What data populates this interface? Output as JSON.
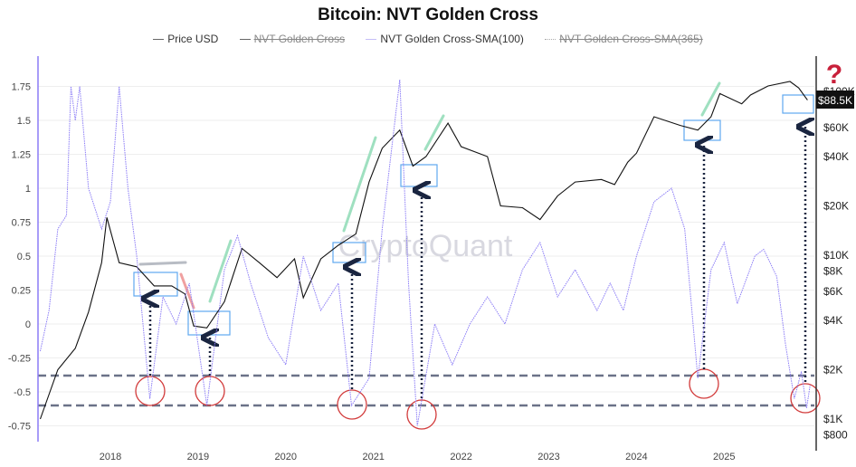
{
  "chart_data": {
    "type": "line",
    "title": "Bitcoin: NVT Golden Cross",
    "legend": [
      {
        "name": "Price USD",
        "hidden": false,
        "color": "#111111"
      },
      {
        "name": "NVT Golden Cross",
        "hidden": true,
        "color": "#333333"
      },
      {
        "name": "NVT Golden Cross-SMA(100)",
        "hidden": false,
        "color": "#8b7cf6"
      },
      {
        "name": "NVT Golden Cross-SMA(365)",
        "hidden": true,
        "color": "#aaaaaa"
      }
    ],
    "legend_placement": "top",
    "x_ticks": [
      "2018",
      "2019",
      "2020",
      "2021",
      "2022",
      "2023",
      "2024",
      "2025"
    ],
    "y_left_ticks": [
      "1.75",
      "1.5",
      "1.25",
      "1",
      "0.75",
      "0.5",
      "0.25",
      "0",
      "-0.25",
      "-0.5",
      "-0.75"
    ],
    "y_left_range": [
      -0.8,
      1.9
    ],
    "y_right_ticks": [
      "$800",
      "$1K",
      "$2K",
      "$4K",
      "$6K",
      "$8K",
      "$10K",
      "$20K",
      "$40K",
      "$60K",
      "$100K"
    ],
    "y_right_scale": "log",
    "grid": "horizontal",
    "last_price_label": "$88.5K",
    "thresholds": [
      -0.38,
      -0.6
    ],
    "watermark": "CryptoQuant",
    "series": [
      {
        "name": "Price USD",
        "axis": "right",
        "points": [
          [
            2017.2,
            1000
          ],
          [
            2017.4,
            2000
          ],
          [
            2017.6,
            2700
          ],
          [
            2017.75,
            4500
          ],
          [
            2017.9,
            9000
          ],
          [
            2017.96,
            17000
          ],
          [
            2018.1,
            9000
          ],
          [
            2018.3,
            8500
          ],
          [
            2018.5,
            6500
          ],
          [
            2018.7,
            6500
          ],
          [
            2018.85,
            5800
          ],
          [
            2018.95,
            3700
          ],
          [
            2019.1,
            3600
          ],
          [
            2019.3,
            5200
          ],
          [
            2019.5,
            11000
          ],
          [
            2019.7,
            9000
          ],
          [
            2019.9,
            7300
          ],
          [
            2020.1,
            9500
          ],
          [
            2020.2,
            5500
          ],
          [
            2020.4,
            9500
          ],
          [
            2020.6,
            11500
          ],
          [
            2020.8,
            13500
          ],
          [
            2020.95,
            28000
          ],
          [
            2021.1,
            45000
          ],
          [
            2021.3,
            58000
          ],
          [
            2021.45,
            35000
          ],
          [
            2021.6,
            40000
          ],
          [
            2021.85,
            64000
          ],
          [
            2022.0,
            46000
          ],
          [
            2022.3,
            40000
          ],
          [
            2022.45,
            20000
          ],
          [
            2022.7,
            19500
          ],
          [
            2022.9,
            16500
          ],
          [
            2023.1,
            23000
          ],
          [
            2023.3,
            28000
          ],
          [
            2023.6,
            29000
          ],
          [
            2023.75,
            27000
          ],
          [
            2023.9,
            37000
          ],
          [
            2024.0,
            42000
          ],
          [
            2024.2,
            70000
          ],
          [
            2024.5,
            62000
          ],
          [
            2024.7,
            58000
          ],
          [
            2024.85,
            70000
          ],
          [
            2024.95,
            97000
          ],
          [
            2025.2,
            84000
          ],
          [
            2025.3,
            95000
          ],
          [
            2025.5,
            108000
          ],
          [
            2025.75,
            115000
          ],
          [
            2025.85,
            105000
          ],
          [
            2025.95,
            88500
          ]
        ]
      },
      {
        "name": "NVT Golden Cross-SMA(100)",
        "axis": "left",
        "points": [
          [
            2017.2,
            -0.2
          ],
          [
            2017.3,
            0.1
          ],
          [
            2017.4,
            0.7
          ],
          [
            2017.5,
            0.8
          ],
          [
            2017.55,
            1.75
          ],
          [
            2017.6,
            1.5
          ],
          [
            2017.65,
            1.75
          ],
          [
            2017.75,
            1.0
          ],
          [
            2017.9,
            0.7
          ],
          [
            2018.0,
            0.9
          ],
          [
            2018.1,
            1.75
          ],
          [
            2018.2,
            1.0
          ],
          [
            2018.3,
            0.5
          ],
          [
            2018.45,
            -0.55
          ],
          [
            2018.6,
            0.2
          ],
          [
            2018.75,
            0.0
          ],
          [
            2018.9,
            0.3
          ],
          [
            2019.1,
            -0.6
          ],
          [
            2019.3,
            0.4
          ],
          [
            2019.45,
            0.65
          ],
          [
            2019.6,
            0.3
          ],
          [
            2019.8,
            -0.1
          ],
          [
            2020.0,
            -0.3
          ],
          [
            2020.2,
            0.5
          ],
          [
            2020.4,
            0.1
          ],
          [
            2020.6,
            0.3
          ],
          [
            2020.75,
            -0.6
          ],
          [
            2020.95,
            -0.4
          ],
          [
            2021.1,
            0.7
          ],
          [
            2021.3,
            1.8
          ],
          [
            2021.4,
            0.3
          ],
          [
            2021.5,
            -0.75
          ],
          [
            2021.7,
            0.0
          ],
          [
            2021.9,
            -0.3
          ],
          [
            2022.1,
            0.0
          ],
          [
            2022.3,
            0.2
          ],
          [
            2022.5,
            0.0
          ],
          [
            2022.7,
            0.4
          ],
          [
            2022.9,
            0.6
          ],
          [
            2023.1,
            0.2
          ],
          [
            2023.3,
            0.4
          ],
          [
            2023.55,
            0.1
          ],
          [
            2023.7,
            0.3
          ],
          [
            2023.85,
            0.1
          ],
          [
            2024.0,
            0.5
          ],
          [
            2024.2,
            0.9
          ],
          [
            2024.4,
            1.0
          ],
          [
            2024.55,
            0.7
          ],
          [
            2024.7,
            -0.4
          ],
          [
            2024.85,
            0.4
          ],
          [
            2025.0,
            0.6
          ],
          [
            2025.15,
            0.15
          ],
          [
            2025.35,
            0.5
          ],
          [
            2025.45,
            0.55
          ],
          [
            2025.6,
            0.35
          ],
          [
            2025.7,
            -0.15
          ],
          [
            2025.8,
            -0.55
          ],
          [
            2025.88,
            -0.35
          ],
          [
            2025.94,
            -0.62
          ],
          [
            2025.98,
            -0.45
          ]
        ]
      }
    ]
  }
}
